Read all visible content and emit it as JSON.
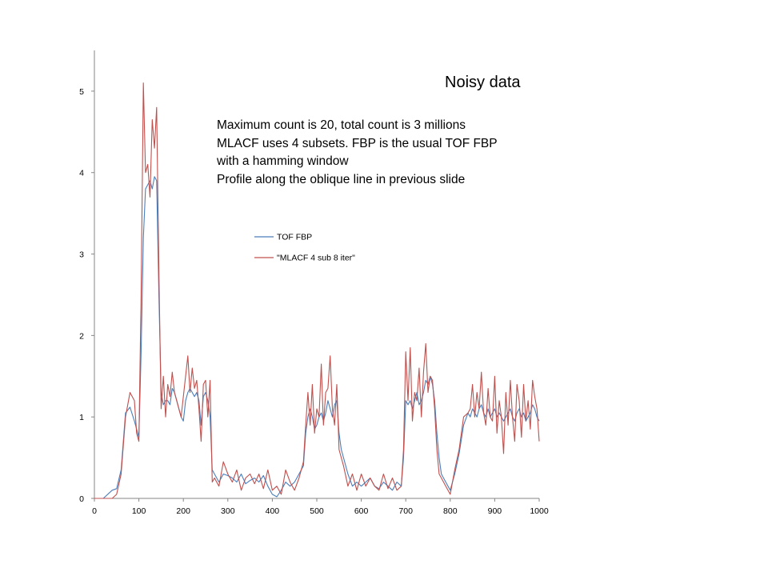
{
  "slide": {
    "title": "Noisy data",
    "notes": [
      "Maximum count is 20, total count is 3 millions",
      "MLACF uses 4 subsets. FBP is the usual TOF FBP",
      "with a hamming window",
      "Profile along the oblique line in previous slide"
    ]
  },
  "chart_data": {
    "type": "line",
    "title": "",
    "xlabel": "",
    "ylabel": "",
    "xlim": [
      0,
      1000
    ],
    "ylim": [
      0,
      5.5
    ],
    "x_ticks": [
      0,
      100,
      200,
      300,
      400,
      500,
      600,
      700,
      800,
      900,
      1000
    ],
    "y_ticks": [
      0,
      1,
      2,
      3,
      4,
      5
    ],
    "grid": false,
    "legend_position": "upper-center",
    "x": [
      0,
      20,
      40,
      50,
      60,
      70,
      80,
      90,
      95,
      100,
      105,
      110,
      115,
      120,
      125,
      130,
      135,
      140,
      145,
      150,
      155,
      160,
      165,
      170,
      175,
      180,
      185,
      190,
      195,
      200,
      205,
      210,
      215,
      220,
      225,
      230,
      235,
      240,
      245,
      250,
      255,
      260,
      265,
      270,
      280,
      290,
      300,
      310,
      320,
      330,
      340,
      350,
      360,
      370,
      380,
      390,
      400,
      410,
      420,
      430,
      440,
      450,
      460,
      470,
      475,
      480,
      485,
      490,
      495,
      500,
      505,
      510,
      515,
      520,
      525,
      530,
      535,
      540,
      545,
      550,
      555,
      560,
      570,
      580,
      590,
      600,
      610,
      620,
      630,
      640,
      650,
      660,
      670,
      680,
      690,
      695,
      700,
      705,
      710,
      715,
      720,
      725,
      730,
      735,
      740,
      745,
      750,
      755,
      760,
      765,
      770,
      775,
      780,
      790,
      800,
      810,
      820,
      830,
      840,
      845,
      850,
      855,
      860,
      865,
      870,
      875,
      880,
      885,
      890,
      895,
      900,
      905,
      910,
      915,
      920,
      925,
      930,
      935,
      940,
      945,
      950,
      955,
      960,
      965,
      970,
      975,
      980,
      985,
      990,
      995,
      1000
    ],
    "series": [
      {
        "name": "TOF FBP",
        "color": "#4a7ebb",
        "values": [
          0,
          0,
          0.1,
          0.12,
          0.35,
          1.05,
          1.12,
          0.95,
          0.85,
          0.75,
          1.8,
          3.2,
          3.8,
          3.85,
          3.9,
          3.8,
          3.95,
          3.9,
          2.5,
          1.3,
          1.15,
          1.2,
          1.2,
          1.15,
          1.35,
          1.3,
          1.2,
          1.1,
          1.0,
          0.95,
          1.2,
          1.3,
          1.35,
          1.3,
          1.25,
          1.3,
          1.2,
          0.9,
          1.25,
          1.3,
          1.2,
          1.0,
          0.35,
          0.3,
          0.2,
          0.3,
          0.28,
          0.25,
          0.2,
          0.3,
          0.18,
          0.22,
          0.25,
          0.2,
          0.28,
          0.15,
          0.05,
          0.02,
          0.1,
          0.2,
          0.15,
          0.2,
          0.3,
          0.4,
          0.8,
          1.0,
          1.1,
          1.0,
          0.85,
          0.9,
          1.0,
          1.05,
          0.95,
          1.05,
          1.2,
          1.1,
          1.0,
          1.15,
          1.2,
          0.8,
          0.6,
          0.5,
          0.3,
          0.15,
          0.2,
          0.15,
          0.2,
          0.25,
          0.15,
          0.12,
          0.2,
          0.15,
          0.1,
          0.2,
          0.15,
          0.5,
          1.2,
          1.15,
          1.2,
          1.1,
          1.2,
          1.3,
          1.15,
          1.2,
          1.3,
          1.45,
          1.4,
          1.5,
          1.4,
          1.2,
          0.8,
          0.5,
          0.3,
          0.2,
          0.1,
          0.3,
          0.55,
          0.9,
          1.05,
          1.0,
          1.1,
          1.05,
          1.0,
          1.1,
          1.15,
          1.05,
          1.0,
          1.1,
          1.0,
          1.05,
          1.1,
          1.0,
          1.05,
          1.0,
          0.95,
          1.0,
          1.05,
          1.1,
          1.0,
          0.95,
          1.05,
          1.1,
          1.0,
          1.05,
          0.95,
          1.0,
          1.05,
          1.15,
          1.1,
          1.0,
          0.95
        ]
      },
      {
        "name": "\"MLACF 4 sub 8 iter\"",
        "color": "#c0504d",
        "values": [
          0,
          0,
          0,
          0.05,
          0.3,
          1.0,
          1.3,
          1.2,
          0.8,
          0.7,
          2.5,
          5.1,
          4.0,
          4.1,
          3.7,
          4.65,
          4.3,
          4.8,
          2.8,
          1.1,
          1.5,
          1.0,
          1.4,
          1.25,
          1.55,
          1.3,
          1.2,
          1.1,
          1.0,
          1.25,
          1.5,
          1.75,
          1.3,
          1.6,
          1.35,
          1.45,
          1.1,
          0.7,
          1.4,
          1.45,
          1.0,
          1.45,
          0.2,
          0.25,
          0.15,
          0.45,
          0.3,
          0.2,
          0.35,
          0.1,
          0.25,
          0.3,
          0.18,
          0.3,
          0.12,
          0.35,
          0.1,
          0.15,
          0.05,
          0.35,
          0.2,
          0.1,
          0.25,
          0.45,
          0.9,
          1.3,
          0.9,
          1.4,
          0.8,
          1.1,
          1.0,
          1.65,
          0.9,
          1.3,
          1.35,
          1.75,
          1.1,
          0.9,
          1.4,
          0.6,
          0.5,
          0.4,
          0.15,
          0.3,
          0.1,
          0.3,
          0.15,
          0.25,
          0.15,
          0.1,
          0.3,
          0.12,
          0.25,
          0.1,
          0.15,
          0.6,
          1.8,
          1.2,
          1.85,
          0.95,
          1.3,
          1.2,
          1.6,
          1.0,
          1.55,
          1.9,
          1.3,
          1.5,
          1.45,
          1.1,
          0.6,
          0.3,
          0.25,
          0.15,
          0.05,
          0.35,
          0.6,
          1.0,
          1.05,
          1.1,
          1.4,
          1.0,
          1.3,
          1.1,
          1.55,
          1.05,
          0.9,
          1.35,
          1.0,
          0.95,
          1.5,
          0.8,
          1.2,
          1.0,
          0.55,
          1.3,
          0.9,
          1.45,
          1.0,
          0.7,
          1.4,
          1.2,
          0.75,
          1.4,
          0.95,
          1.2,
          0.85,
          1.45,
          1.25,
          1.1,
          0.7
        ]
      }
    ]
  }
}
